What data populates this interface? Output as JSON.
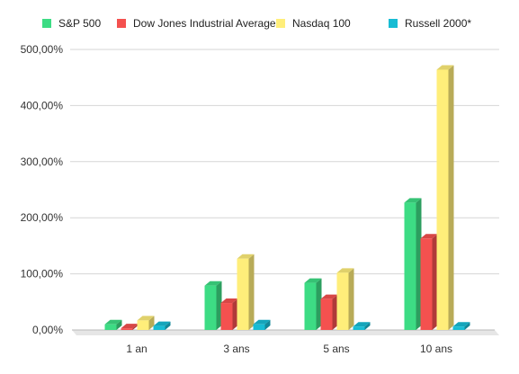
{
  "chart_data": {
    "type": "bar",
    "style": "3d-columns",
    "categories": [
      "1 an",
      "3 ans",
      "5 ans",
      "10 ans"
    ],
    "series": [
      {
        "name": "S&P 500",
        "color": "#3ddc84",
        "values": [
          10,
          79,
          84,
          227
        ]
      },
      {
        "name": "Dow Jones Industrial Average",
        "color": "#f4514f",
        "values": [
          3,
          48,
          55,
          163
        ]
      },
      {
        "name": "Nasdaq 100",
        "color": "#ffee7a",
        "values": [
          17,
          127,
          102,
          464
        ]
      },
      {
        "name": "Russell 2000*",
        "color": "#17bcd4",
        "values": [
          7,
          10,
          6,
          6
        ]
      }
    ],
    "ylim": [
      0,
      500
    ],
    "yticks": [
      "0,00%",
      "100,00%",
      "200,00%",
      "300,00%",
      "400,00%",
      "500,00%"
    ],
    "ytick_values": [
      0,
      100,
      200,
      300,
      400,
      500
    ],
    "grid": true,
    "legend_position": "top"
  }
}
